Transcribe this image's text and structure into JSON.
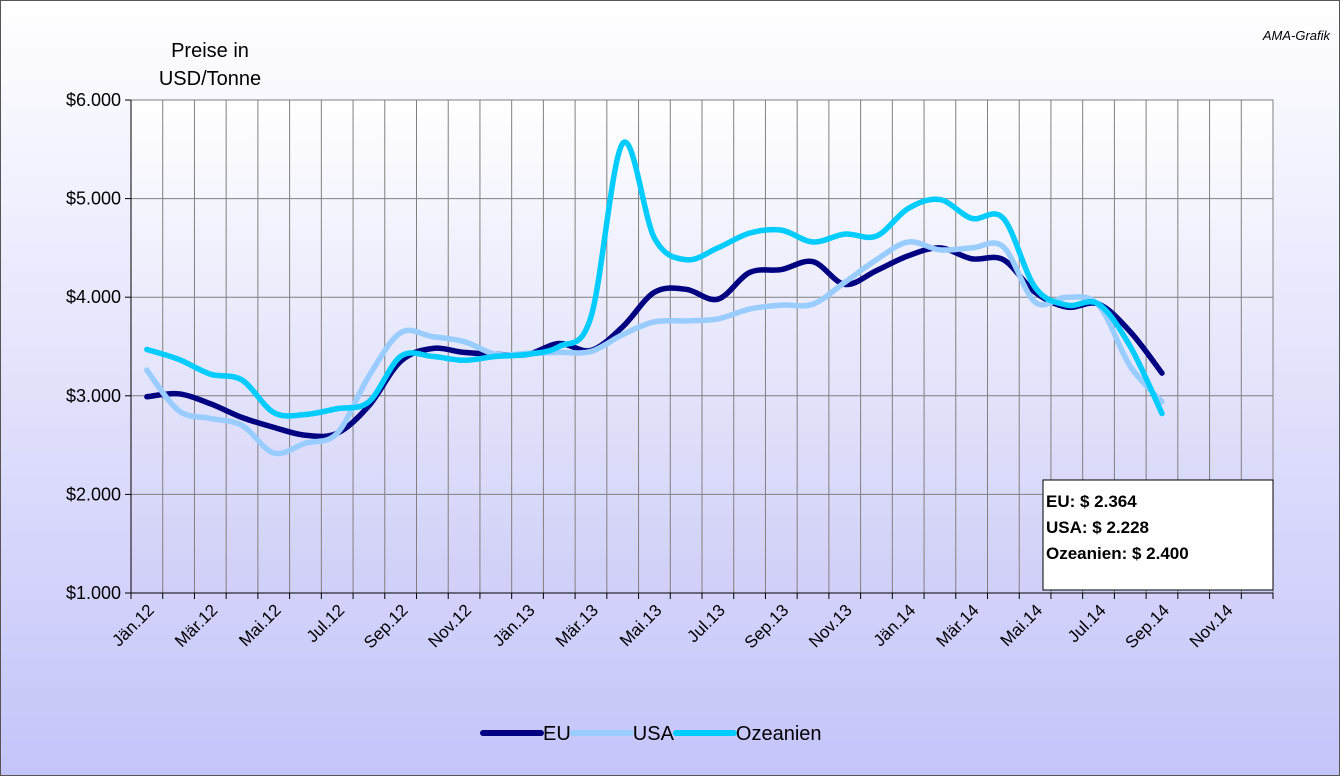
{
  "chart_data": {
    "type": "line",
    "source": "AMA-Grafik",
    "y_label": [
      "Preise in",
      "USD/Tonne"
    ],
    "categories": [
      "Jän.12",
      null,
      "Mär.12",
      null,
      "Mai.12",
      null,
      "Jul.12",
      null,
      "Sep.12",
      null,
      "Nov.12",
      null,
      "Jän.13",
      null,
      "Mär.13",
      null,
      "Mai.13",
      null,
      "Jul.13",
      null,
      "Sep.13",
      null,
      "Nov.13",
      null,
      "Jän.14",
      null,
      "Mär.14",
      null,
      "Mai.14",
      null,
      "Jul.14",
      null,
      "Sep.14",
      null,
      "Nov.14",
      null
    ],
    "series": [
      {
        "name": "EU",
        "color": "#000080",
        "values": [
          2990,
          3020,
          2920,
          2780,
          2680,
          2600,
          2620,
          2900,
          3350,
          3480,
          3440,
          3420,
          3420,
          3530,
          3460,
          3700,
          4050,
          4080,
          3980,
          4250,
          4280,
          4360,
          4130,
          4270,
          4420,
          4500,
          4390,
          4380,
          4050,
          3900,
          3930,
          3650,
          3230,
          null,
          null,
          null
        ]
      },
      {
        "name": "USA",
        "color": "#99ccff",
        "values": [
          3260,
          2850,
          2770,
          2700,
          2420,
          2520,
          2620,
          3200,
          3640,
          3600,
          3550,
          3420,
          3430,
          3440,
          3450,
          3620,
          3750,
          3760,
          3780,
          3880,
          3920,
          3930,
          4150,
          4380,
          4560,
          4480,
          4500,
          4510,
          3950,
          4000,
          3920,
          3300,
          2940,
          null,
          null,
          null
        ]
      },
      {
        "name": "Ozeanien",
        "color": "#00ccff",
        "values": [
          3470,
          3370,
          3220,
          3160,
          2830,
          2810,
          2870,
          2940,
          3400,
          3400,
          3360,
          3400,
          3420,
          3500,
          3800,
          5560,
          4600,
          4380,
          4500,
          4650,
          4680,
          4560,
          4640,
          4620,
          4900,
          4990,
          4800,
          4800,
          4100,
          3920,
          3930,
          3500,
          2820,
          null,
          null,
          null
        ]
      }
    ],
    "ylim": [
      1000,
      6000
    ],
    "yticks": [
      {
        "value": 1000,
        "label": "$1.000"
      },
      {
        "value": 2000,
        "label": "$2.000"
      },
      {
        "value": 3000,
        "label": "$3.000"
      },
      {
        "value": 4000,
        "label": "$4.000"
      },
      {
        "value": 5000,
        "label": "$5.000"
      },
      {
        "value": 6000,
        "label": "$6.000"
      }
    ],
    "grid": true,
    "legend": "bottom",
    "annotations": [
      "EU: $ 2.364",
      "USA: $ 2.228",
      "Ozeanien: $ 2.400"
    ]
  }
}
